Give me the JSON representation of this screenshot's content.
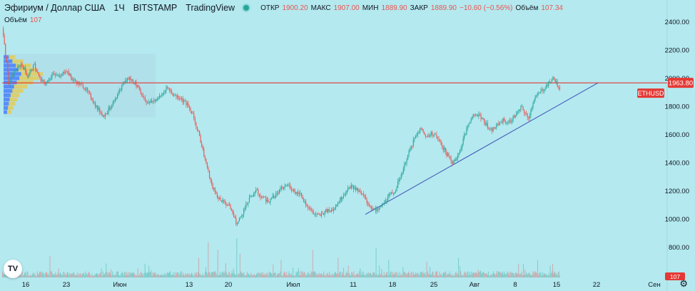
{
  "header": {
    "symbol_title": "Эфириум / Доллар США",
    "interval": "1Ч",
    "exchange": "BITSTAMP",
    "platform": "TradingView",
    "open_label": "ОТКР",
    "open_value": "1900.20",
    "high_label": "МАКС",
    "high_value": "1907.00",
    "low_label": "МИН",
    "low_value": "1889.90",
    "close_label": "ЗАКР",
    "close_value": "1889.90",
    "change_value": "−10.60 (−0.56%)",
    "volume_label_inline": "Объём",
    "volume_value_inline": "107.34",
    "status_dot_color": "#26a69a"
  },
  "volume_pane": {
    "label": "Объём",
    "value": "107",
    "badge": "107"
  },
  "logo": {
    "text": "TV"
  },
  "settings": {
    "icon": "gear-icon"
  },
  "colors": {
    "background": "#b3e9ef",
    "up": "#26a69a",
    "down": "#ef5350",
    "hline": "#e53935",
    "trendline": "#3f51b5"
  },
  "chart_data": {
    "type": "candlestick",
    "series_name": "ETHUSD",
    "price_tag": "1963.80",
    "y_ticks": [
      "2400.00",
      "2200.00",
      "2000.00",
      "1800.00",
      "1600.00",
      "1400.00",
      "1200.00",
      "1000.00",
      "800.00"
    ],
    "ylim": [
      760,
      2480
    ],
    "x_ticks": [
      "16",
      "23",
      "Июн",
      "13",
      "20",
      "Июл",
      "11",
      "18",
      "25",
      "Авг",
      "8",
      "15",
      "22",
      "Сен"
    ],
    "horizontal_line": 1963.8,
    "trendline": {
      "from": [
        "Июл 13",
        1030
      ],
      "to": [
        "Авг 22",
        1963.8
      ]
    },
    "price_path": [
      [
        0,
        2350
      ],
      [
        4,
        1960
      ],
      [
        8,
        2050
      ],
      [
        12,
        2100
      ],
      [
        16,
        2010
      ],
      [
        20,
        2090
      ],
      [
        24,
        1980
      ],
      [
        28,
        1960
      ],
      [
        32,
        2040
      ],
      [
        36,
        2000
      ],
      [
        40,
        2060
      ],
      [
        44,
        1990
      ],
      [
        48,
        1960
      ],
      [
        52,
        1930
      ],
      [
        56,
        1860
      ],
      [
        60,
        1780
      ],
      [
        64,
        1730
      ],
      [
        68,
        1790
      ],
      [
        72,
        1850
      ],
      [
        76,
        1960
      ],
      [
        80,
        2000
      ],
      [
        84,
        1960
      ],
      [
        88,
        1880
      ],
      [
        92,
        1820
      ],
      [
        96,
        1840
      ],
      [
        100,
        1870
      ],
      [
        104,
        1930
      ],
      [
        108,
        1880
      ],
      [
        112,
        1860
      ],
      [
        116,
        1820
      ],
      [
        120,
        1740
      ],
      [
        124,
        1600
      ],
      [
        128,
        1420
      ],
      [
        132,
        1240
      ],
      [
        136,
        1150
      ],
      [
        140,
        1120
      ],
      [
        144,
        1080
      ],
      [
        148,
        960
      ],
      [
        152,
        1050
      ],
      [
        156,
        1140
      ],
      [
        160,
        1200
      ],
      [
        164,
        1150
      ],
      [
        168,
        1120
      ],
      [
        172,
        1160
      ],
      [
        176,
        1210
      ],
      [
        180,
        1240
      ],
      [
        184,
        1200
      ],
      [
        188,
        1170
      ],
      [
        192,
        1100
      ],
      [
        196,
        1040
      ],
      [
        200,
        1020
      ],
      [
        204,
        1050
      ],
      [
        208,
        1060
      ],
      [
        212,
        1120
      ],
      [
        216,
        1180
      ],
      [
        220,
        1230
      ],
      [
        224,
        1200
      ],
      [
        228,
        1160
      ],
      [
        232,
        1090
      ],
      [
        236,
        1050
      ],
      [
        240,
        1100
      ],
      [
        244,
        1160
      ],
      [
        248,
        1200
      ],
      [
        252,
        1320
      ],
      [
        256,
        1450
      ],
      [
        260,
        1560
      ],
      [
        264,
        1640
      ],
      [
        268,
        1580
      ],
      [
        272,
        1610
      ],
      [
        276,
        1550
      ],
      [
        280,
        1470
      ],
      [
        284,
        1400
      ],
      [
        288,
        1450
      ],
      [
        292,
        1600
      ],
      [
        296,
        1720
      ],
      [
        300,
        1740
      ],
      [
        304,
        1700
      ],
      [
        308,
        1620
      ],
      [
        312,
        1660
      ],
      [
        316,
        1700
      ],
      [
        320,
        1680
      ],
      [
        324,
        1740
      ],
      [
        328,
        1790
      ],
      [
        332,
        1710
      ],
      [
        336,
        1860
      ],
      [
        340,
        1900
      ],
      [
        344,
        1950
      ],
      [
        348,
        2000
      ],
      [
        350,
        1960
      ],
      [
        352,
        1900
      ]
    ],
    "volume_spikes": [
      [
        30,
        0.55
      ],
      [
        90,
        0.35
      ],
      [
        124,
        0.5
      ],
      [
        130,
        0.9
      ],
      [
        136,
        0.7
      ],
      [
        148,
        1.0
      ],
      [
        150,
        0.6
      ],
      [
        176,
        0.45
      ],
      [
        196,
        0.7
      ],
      [
        212,
        0.5
      ],
      [
        236,
        0.75
      ],
      [
        244,
        0.45
      ],
      [
        268,
        0.4
      ],
      [
        288,
        0.5
      ],
      [
        326,
        0.35
      ],
      [
        338,
        0.45
      ],
      [
        346,
        0.3
      ]
    ],
    "volume_profile": [
      [
        2130,
        0.3
      ],
      [
        2100,
        0.5
      ],
      [
        2070,
        0.7
      ],
      [
        2040,
        0.85
      ],
      [
        2010,
        1.0
      ],
      [
        1980,
        0.9
      ],
      [
        1950,
        0.75
      ],
      [
        1920,
        0.6
      ],
      [
        1890,
        0.5
      ],
      [
        1860,
        0.4
      ],
      [
        1830,
        0.35
      ],
      [
        1800,
        0.3
      ],
      [
        1770,
        0.25
      ],
      [
        1740,
        0.2
      ]
    ]
  }
}
